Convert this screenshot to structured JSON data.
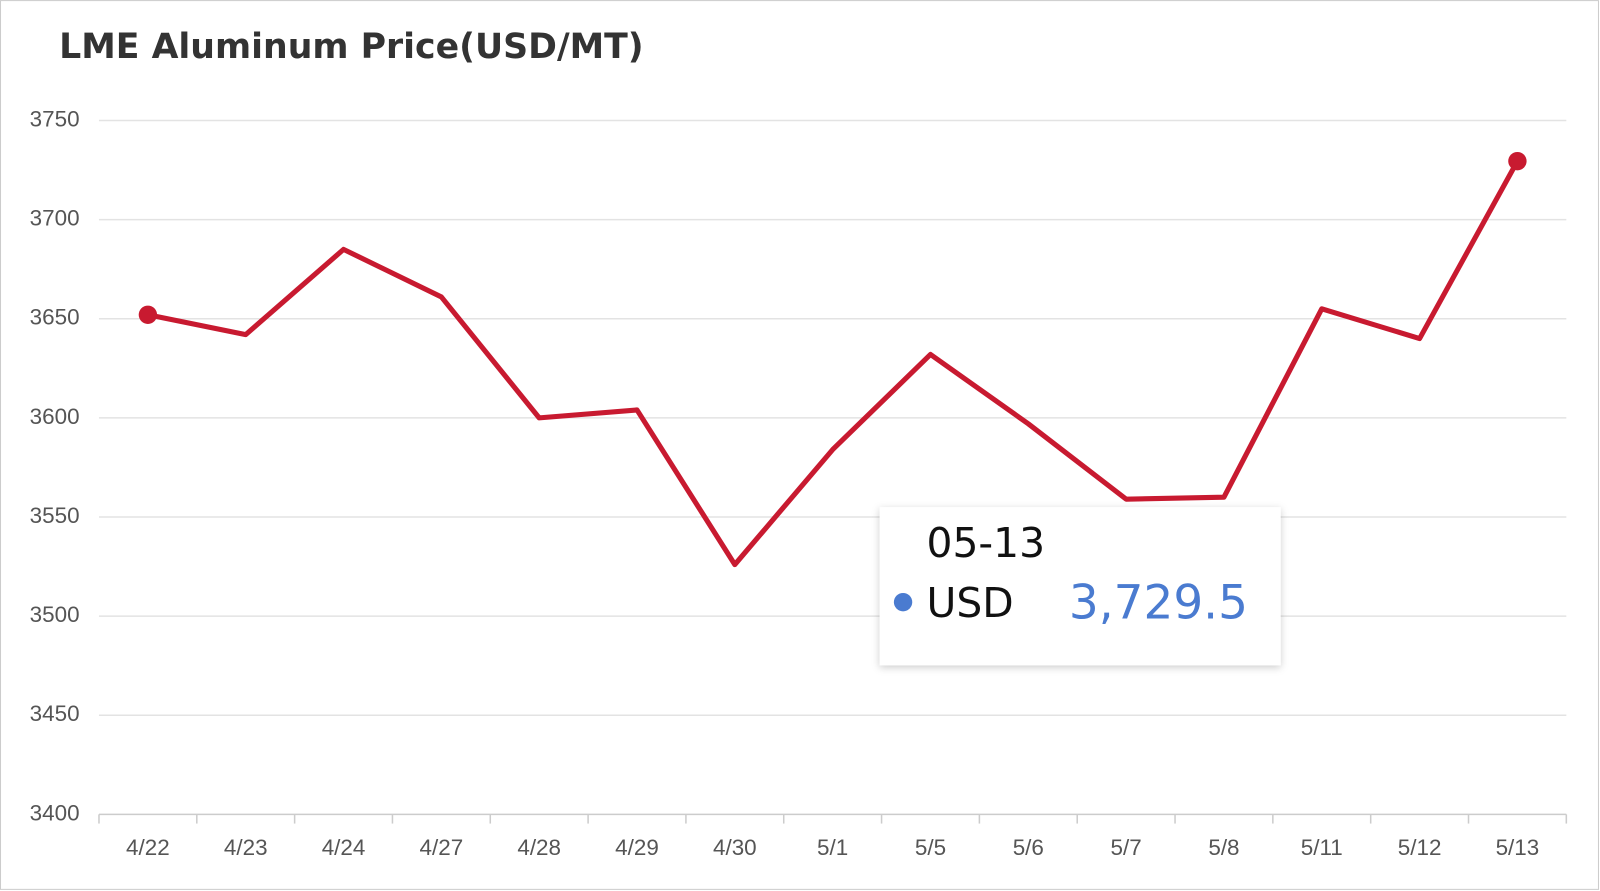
{
  "chart_data": {
    "type": "line",
    "title": "LME Aluminum Price(USD/MT)",
    "categories": [
      "4/22",
      "4/23",
      "4/24",
      "4/27",
      "4/28",
      "4/29",
      "4/30",
      "5/1",
      "5/5",
      "5/6",
      "5/7",
      "5/8",
      "5/11",
      "5/12",
      "5/13"
    ],
    "series": [
      {
        "name": "USD",
        "color": "#c81a30",
        "values": [
          3652,
          3642,
          3685,
          3661,
          3600,
          3604,
          3526,
          3584,
          3632,
          3597,
          3559,
          3560,
          3655,
          3640,
          3729.5
        ]
      }
    ],
    "ylim": [
      3400,
      3750
    ],
    "yticks": [
      3400,
      3450,
      3500,
      3550,
      3600,
      3650,
      3700,
      3750
    ],
    "grid": true,
    "tooltip": {
      "title": "05-13",
      "value": 3729.5,
      "value_label": "3,729.5",
      "color": "#4a7bd0"
    }
  }
}
